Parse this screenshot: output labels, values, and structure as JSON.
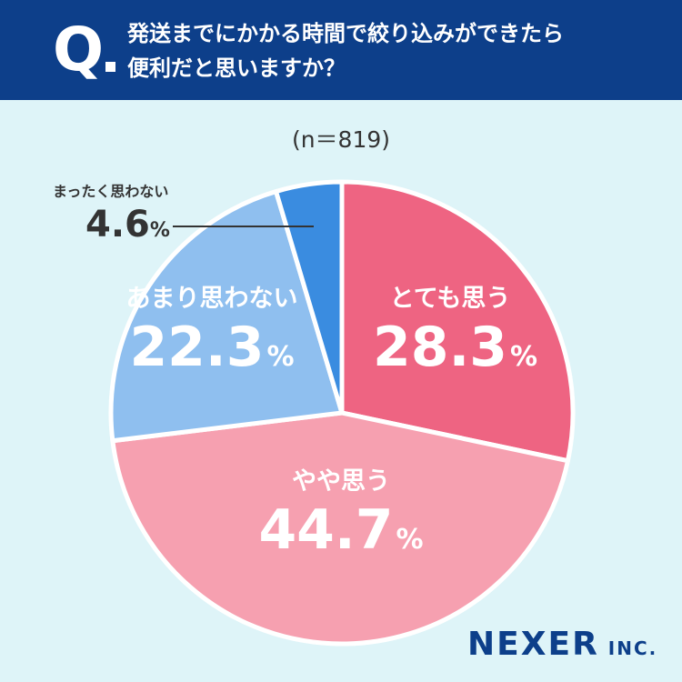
{
  "question": {
    "mark": "Q",
    "line1": "発送までにかかる時間で絞り込みができたら",
    "line2": "便利だと思いますか？"
  },
  "sample_size": "(n＝819)",
  "logo": {
    "name": "NEXER",
    "suffix": "INC."
  },
  "colors": {
    "header": "#0d3f8a",
    "background": "#def4f8",
    "totemo": "#ee6482",
    "yaya": "#f6a0b0",
    "amari": "#8fbfef",
    "mattaku": "#3a8ce0"
  },
  "chart_data": {
    "type": "pie",
    "unit": "%",
    "slices": [
      {
        "label": "とても思う",
        "value": 28.3,
        "display": "28.3",
        "color": "#ee6482"
      },
      {
        "label": "やや思う",
        "value": 44.7,
        "display": "44.7",
        "color": "#f6a0b0"
      },
      {
        "label": "あまり思わない",
        "value": 22.3,
        "display": "22.3",
        "color": "#8fbfef"
      },
      {
        "label": "まったく思わない",
        "value": 4.6,
        "display": "4.6",
        "color": "#3a8ce0"
      }
    ]
  }
}
